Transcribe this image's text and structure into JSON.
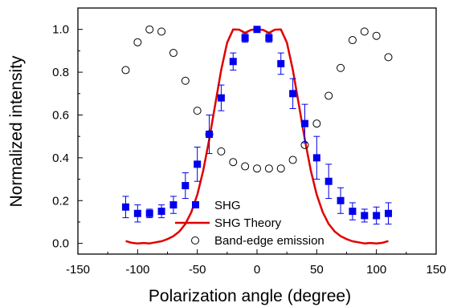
{
  "chart_data": {
    "type": "scatter",
    "xlabel": "Polarization angle (degree)",
    "ylabel": "Normalized intensity",
    "xlim": [
      -150,
      150
    ],
    "ylim": [
      -0.05,
      1.1
    ],
    "x_ticks": [
      -150,
      -100,
      -50,
      0,
      50,
      100,
      150
    ],
    "y_ticks": [
      0.0,
      0.2,
      0.4,
      0.6,
      0.8,
      1.0
    ],
    "x_tick_labels": [
      "-150",
      "-100",
      "-50",
      "0",
      "50",
      "100",
      "150"
    ],
    "y_tick_labels": [
      "0.0",
      "0.2",
      "0.4",
      "0.6",
      "0.8",
      "1.0"
    ],
    "legend_position": "bottom-center",
    "series": [
      {
        "name": "SHG",
        "style": "square-marker-errorbar",
        "color": "#0000ee",
        "x": [
          -110,
          -100,
          -90,
          -80,
          -70,
          -60,
          -50,
          -40,
          -30,
          -20,
          -10,
          0,
          10,
          20,
          30,
          40,
          50,
          60,
          70,
          80,
          90,
          100,
          110
        ],
        "y": [
          0.17,
          0.14,
          0.14,
          0.15,
          0.18,
          0.27,
          0.37,
          0.51,
          0.68,
          0.85,
          0.96,
          1.0,
          0.96,
          0.84,
          0.7,
          0.56,
          0.4,
          0.29,
          0.2,
          0.15,
          0.13,
          0.13,
          0.14
        ],
        "err": [
          0.05,
          0.04,
          0.02,
          0.03,
          0.04,
          0.06,
          0.08,
          0.09,
          0.06,
          0.04,
          0.02,
          0.01,
          0.02,
          0.05,
          0.07,
          0.09,
          0.1,
          0.08,
          0.06,
          0.04,
          0.03,
          0.04,
          0.05
        ]
      },
      {
        "name": "SHG Theory",
        "style": "line",
        "color": "#e00000",
        "x": [
          -110,
          -105,
          -100,
          -95,
          -90,
          -85,
          -80,
          -75,
          -70,
          -65,
          -60,
          -55,
          -50,
          -45,
          -40,
          -35,
          -30,
          -25,
          -20,
          -15,
          -10,
          -5,
          0,
          5,
          10,
          15,
          20,
          25,
          30,
          35,
          40,
          45,
          50,
          55,
          60,
          65,
          70,
          75,
          80,
          85,
          90,
          95,
          100,
          105,
          110
        ],
        "y": [
          0.011,
          0.003,
          0.0,
          0.002,
          0.0,
          0.005,
          0.01,
          0.02,
          0.034,
          0.056,
          0.091,
          0.146,
          0.228,
          0.342,
          0.486,
          0.65,
          0.811,
          0.938,
          1.0,
          0.999,
          0.984,
          0.998,
          1.0,
          0.998,
          0.984,
          0.999,
          1.0,
          0.938,
          0.811,
          0.65,
          0.486,
          0.342,
          0.228,
          0.146,
          0.091,
          0.056,
          0.034,
          0.02,
          0.01,
          0.005,
          0.0,
          0.002,
          0.0,
          0.003,
          0.011
        ]
      },
      {
        "name": "Band-edge emission",
        "style": "open-circle-marker",
        "color": "#000000",
        "x": [
          -110,
          -100,
          -90,
          -80,
          -70,
          -60,
          -50,
          -40,
          -30,
          -20,
          -10,
          0,
          10,
          20,
          30,
          40,
          50,
          60,
          70,
          80,
          90,
          100,
          110
        ],
        "y": [
          0.81,
          0.94,
          1.0,
          0.99,
          0.89,
          0.76,
          0.62,
          0.51,
          0.43,
          0.38,
          0.36,
          0.35,
          0.35,
          0.35,
          0.39,
          0.46,
          0.56,
          0.69,
          0.82,
          0.95,
          0.99,
          0.97,
          0.87
        ]
      }
    ]
  }
}
